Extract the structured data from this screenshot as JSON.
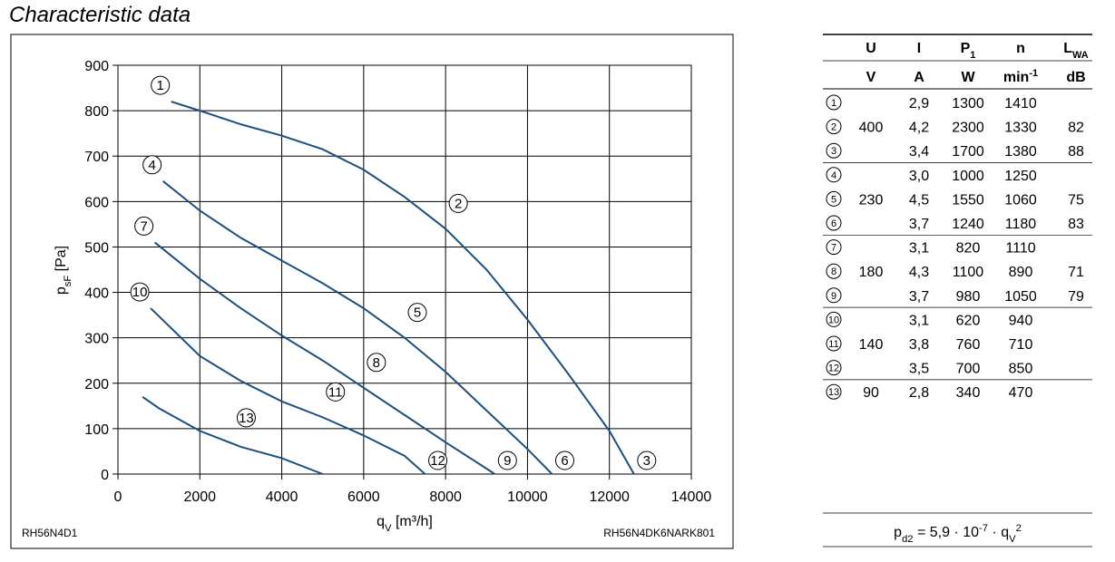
{
  "chart_data": {
    "type": "line",
    "title": "Characteristic data",
    "x_label": [
      {
        "t": "q"
      },
      {
        "t": "V",
        "pos": "sub"
      },
      {
        "t": " [m³/h]"
      }
    ],
    "y_label": [
      {
        "t": "p"
      },
      {
        "t": "sF",
        "pos": "sub"
      },
      {
        "t": " [Pa]"
      }
    ],
    "xlim": [
      0,
      14000
    ],
    "xticks": [
      0,
      2000,
      4000,
      6000,
      8000,
      10000,
      12000,
      14000
    ],
    "ylim": [
      0,
      900
    ],
    "yticks": [
      0,
      100,
      200,
      300,
      400,
      500,
      600,
      700,
      800,
      900
    ],
    "grid": true,
    "series": [
      {
        "labels": [
          "1",
          "2",
          "3"
        ],
        "color": "#1c4f80",
        "x": [
          1300,
          2000,
          3000,
          4000,
          5000,
          6000,
          7000,
          8000,
          9000,
          10000,
          11000,
          12000,
          12600
        ],
        "values": [
          820,
          800,
          770,
          745,
          715,
          670,
          610,
          540,
          450,
          340,
          220,
          95,
          0
        ]
      },
      {
        "labels": [
          "4",
          "5",
          "6"
        ],
        "color": "#1c4f80",
        "x": [
          1100,
          2000,
          3000,
          4000,
          5000,
          6000,
          7000,
          8000,
          9000,
          10000,
          10600
        ],
        "values": [
          645,
          580,
          520,
          470,
          420,
          365,
          300,
          225,
          140,
          55,
          0
        ]
      },
      {
        "labels": [
          "7",
          "8",
          "9"
        ],
        "color": "#1c4f80",
        "x": [
          900,
          2000,
          3000,
          4000,
          5000,
          6000,
          7000,
          8000,
          9000,
          9200
        ],
        "values": [
          510,
          430,
          365,
          305,
          250,
          190,
          130,
          70,
          12,
          0
        ]
      },
      {
        "labels": [
          "10",
          "11",
          "12"
        ],
        "color": "#1c4f80",
        "x": [
          800,
          2000,
          3000,
          4000,
          5000,
          6000,
          7000,
          7500
        ],
        "values": [
          365,
          260,
          205,
          160,
          125,
          85,
          40,
          0
        ]
      },
      {
        "labels": [
          "13"
        ],
        "color": "#1c4f80",
        "x": [
          600,
          1000,
          2000,
          3000,
          4000,
          5000
        ],
        "values": [
          170,
          145,
          95,
          60,
          35,
          0
        ]
      }
    ],
    "footer_left": "RH56N4D1",
    "footer_right": "RH56N4DK6NARK801"
  },
  "table": {
    "header": [
      {
        "t": "U"
      },
      {
        "t": "I"
      },
      {
        "t": "P",
        "sub": "1"
      },
      {
        "t": "n"
      },
      {
        "t": "L",
        "sub": "WA"
      }
    ],
    "units": [
      {
        "t": "V"
      },
      {
        "t": "A"
      },
      {
        "t": "W"
      },
      {
        "t": "min",
        "sup": "-1"
      },
      {
        "t": "dB"
      }
    ],
    "rows": [
      [
        "1",
        null,
        "2,9",
        "1300",
        "1410",
        null
      ],
      [
        "2",
        "400",
        "4,2",
        "2300",
        "1330",
        "82"
      ],
      [
        "3",
        null,
        "3,4",
        "1700",
        "1380",
        "88"
      ],
      [
        "4",
        null,
        "3,0",
        "1000",
        "1250",
        null
      ],
      [
        "5",
        "230",
        "4,5",
        "1550",
        "1060",
        "75"
      ],
      [
        "6",
        null,
        "3,7",
        "1240",
        "1180",
        "83"
      ],
      [
        "7",
        null,
        "3,1",
        "820",
        "1110",
        null
      ],
      [
        "8",
        "180",
        "4,3",
        "1100",
        "890",
        "71"
      ],
      [
        "9",
        null,
        "3,7",
        "980",
        "1050",
        "79"
      ],
      [
        "10",
        null,
        "3,1",
        "620",
        "940",
        null
      ],
      [
        "11",
        "140",
        "3,8",
        "760",
        "710",
        null
      ],
      [
        "12",
        null,
        "3,5",
        "700",
        "850",
        null
      ],
      [
        "13",
        "90",
        "2,8",
        "340",
        "470",
        null
      ]
    ],
    "formula": [
      {
        "t": "p"
      },
      {
        "t": "d2",
        "pos": "sub"
      },
      {
        "t": " = 5,9 · 10"
      },
      {
        "t": "-7",
        "pos": "sup"
      },
      {
        "t": " · q"
      },
      {
        "t": "V",
        "pos": "sub"
      },
      {
        "t": "2",
        "pos": "sup"
      }
    ]
  }
}
